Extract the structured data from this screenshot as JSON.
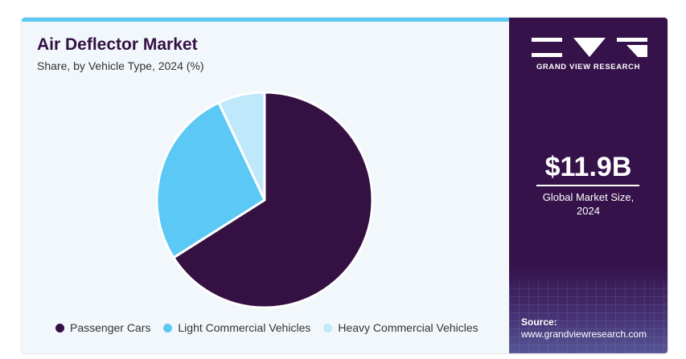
{
  "header": {
    "title": "Air Deflector Market",
    "subtitle": "Share, by Vehicle Type, 2024 (%)"
  },
  "chart_data": {
    "type": "pie",
    "title": "Air Deflector Market",
    "subtitle": "Share, by Vehicle Type, 2024 (%)",
    "categories": [
      "Passenger Cars",
      "Light Commercial Vehicles",
      "Heavy Commercial Vehicles"
    ],
    "values": [
      66,
      27,
      7
    ],
    "colors": [
      "#341043",
      "#5bc8f5",
      "#bfe8fb"
    ],
    "legend_position": "bottom",
    "start_angle_deg": 0,
    "direction": "clockwise"
  },
  "sidebar": {
    "brand_name": "GRAND VIEW RESEARCH",
    "market_size_value": "$11.9B",
    "market_size_caption_line1": "Global Market Size,",
    "market_size_caption_line2": "2024",
    "source_label": "Source:",
    "source_url": "www.grandviewresearch.com"
  },
  "colors": {
    "accent_bar": "#5bc8f5",
    "sidebar_bg": "#35124a",
    "panel_bg": "#f2f7fb"
  }
}
